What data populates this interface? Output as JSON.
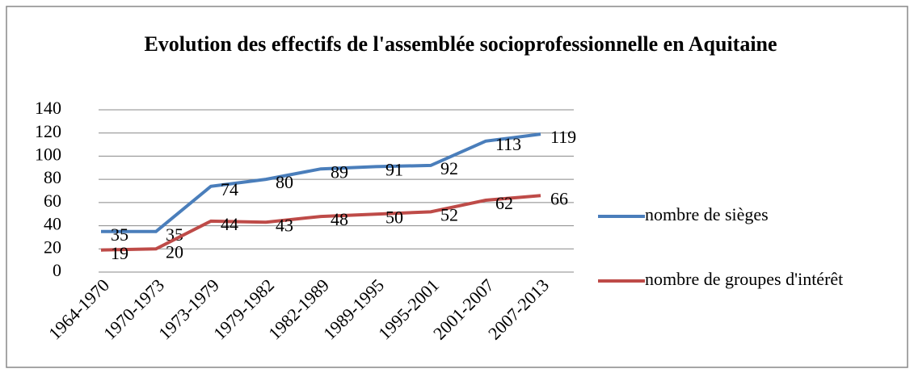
{
  "chart_data": {
    "type": "line",
    "title": "Evolution des effectifs de l'assemblée socioprofessionnelle en Aquitaine",
    "categories": [
      "1964-1970",
      "1970-1973",
      "1973-1979",
      "1979-1982",
      "1982-1989",
      "1989-1995",
      "1995-2001",
      "2001-2007",
      "2007-2013"
    ],
    "series": [
      {
        "name": "nombre de sièges",
        "color": "#4a7ebb",
        "values": [
          35,
          35,
          74,
          80,
          89,
          91,
          92,
          113,
          119
        ]
      },
      {
        "name": "nombre de groupes d'intérêt",
        "color": "#be4b48",
        "values": [
          19,
          20,
          44,
          43,
          48,
          50,
          52,
          62,
          66
        ]
      }
    ],
    "ylim": [
      0,
      140
    ],
    "yticks": [
      0,
      20,
      40,
      60,
      80,
      100,
      120,
      140
    ],
    "grid": true,
    "legend": "right"
  }
}
